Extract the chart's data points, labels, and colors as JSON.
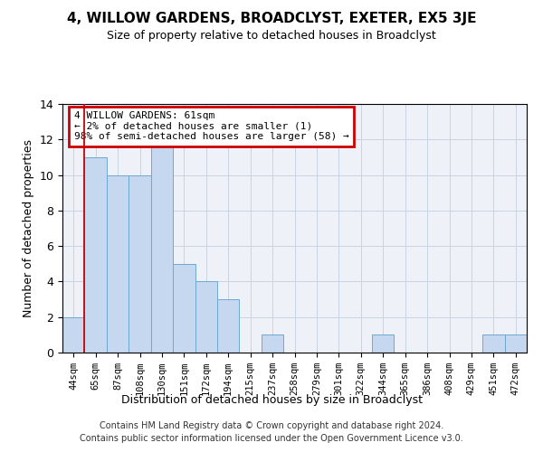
{
  "title": "4, WILLOW GARDENS, BROADCLYST, EXETER, EX5 3JE",
  "subtitle": "Size of property relative to detached houses in Broadclyst",
  "xlabel": "Distribution of detached houses by size in Broadclyst",
  "ylabel": "Number of detached properties",
  "bins": [
    "44sqm",
    "65sqm",
    "87sqm",
    "108sqm",
    "130sqm",
    "151sqm",
    "172sqm",
    "194sqm",
    "215sqm",
    "237sqm",
    "258sqm",
    "279sqm",
    "301sqm",
    "322sqm",
    "344sqm",
    "365sqm",
    "386sqm",
    "408sqm",
    "429sqm",
    "451sqm",
    "472sqm"
  ],
  "values": [
    2,
    11,
    10,
    10,
    12,
    5,
    4,
    3,
    0,
    1,
    0,
    0,
    0,
    0,
    1,
    0,
    0,
    0,
    0,
    1,
    1
  ],
  "bar_color": "#c5d8f0",
  "bar_edge_color": "#6fa8d0",
  "grid_color": "#c8d4e0",
  "background_color": "#eef2f8",
  "red_line_x": 0.5,
  "annotation_text": "4 WILLOW GARDENS: 61sqm\n← 2% of detached houses are smaller (1)\n98% of semi-detached houses are larger (58) →",
  "annotation_box_color": "#ffffff",
  "annotation_border_color": "#cc0000",
  "footer_line1": "Contains HM Land Registry data © Crown copyright and database right 2024.",
  "footer_line2": "Contains public sector information licensed under the Open Government Licence v3.0.",
  "ylim": [
    0,
    14
  ],
  "yticks": [
    0,
    2,
    4,
    6,
    8,
    10,
    12,
    14
  ]
}
